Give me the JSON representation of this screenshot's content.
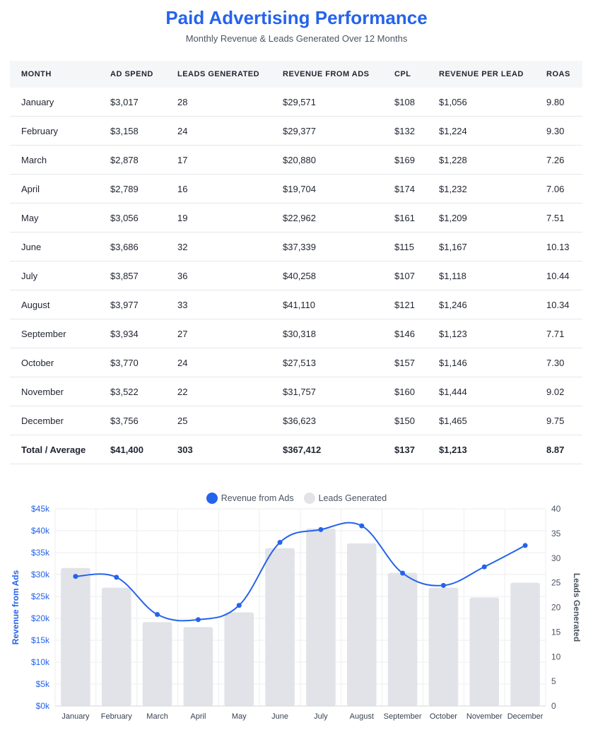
{
  "title": "Paid Advertising Performance",
  "subtitle": "Monthly Revenue & Leads Generated Over 12 Months",
  "table": {
    "headers": [
      "MONTH",
      "AD SPEND",
      "LEADS GENERATED",
      "REVENUE FROM ADS",
      "CPL",
      "REVENUE PER LEAD",
      "ROAS"
    ],
    "rows": [
      [
        "January",
        "$3,017",
        "28",
        "$29,571",
        "$108",
        "$1,056",
        "9.80"
      ],
      [
        "February",
        "$3,158",
        "24",
        "$29,377",
        "$132",
        "$1,224",
        "9.30"
      ],
      [
        "March",
        "$2,878",
        "17",
        "$20,880",
        "$169",
        "$1,228",
        "7.26"
      ],
      [
        "April",
        "$2,789",
        "16",
        "$19,704",
        "$174",
        "$1,232",
        "7.06"
      ],
      [
        "May",
        "$3,056",
        "19",
        "$22,962",
        "$161",
        "$1,209",
        "7.51"
      ],
      [
        "June",
        "$3,686",
        "32",
        "$37,339",
        "$115",
        "$1,167",
        "10.13"
      ],
      [
        "July",
        "$3,857",
        "36",
        "$40,258",
        "$107",
        "$1,118",
        "10.44"
      ],
      [
        "August",
        "$3,977",
        "33",
        "$41,110",
        "$121",
        "$1,246",
        "10.34"
      ],
      [
        "September",
        "$3,934",
        "27",
        "$30,318",
        "$146",
        "$1,123",
        "7.71"
      ],
      [
        "October",
        "$3,770",
        "24",
        "$27,513",
        "$157",
        "$1,146",
        "7.30"
      ],
      [
        "November",
        "$3,522",
        "22",
        "$31,757",
        "$160",
        "$1,444",
        "9.02"
      ],
      [
        "December",
        "$3,756",
        "25",
        "$36,623",
        "$150",
        "$1,465",
        "9.75"
      ]
    ],
    "total": [
      "Total / Average",
      "$41,400",
      "303",
      "$367,412",
      "$137",
      "$1,213",
      "8.87"
    ]
  },
  "colors": {
    "accent": "#2563eb",
    "bar": "#e2e3e8",
    "grid": "#eceef2"
  },
  "chart_data": {
    "type": "bar",
    "categories": [
      "January",
      "February",
      "March",
      "April",
      "May",
      "June",
      "July",
      "August",
      "September",
      "October",
      "November",
      "December"
    ],
    "series": [
      {
        "name": "Revenue from Ads",
        "type": "line",
        "axis": "left",
        "values": [
          29571,
          29377,
          20880,
          19704,
          22962,
          37339,
          40258,
          41110,
          30318,
          27513,
          31757,
          36623
        ]
      },
      {
        "name": "Leads Generated",
        "type": "bar",
        "axis": "right",
        "values": [
          28,
          24,
          17,
          16,
          19,
          32,
          36,
          33,
          27,
          24,
          22,
          25
        ]
      }
    ],
    "ylabel_left": "Revenue from Ads",
    "ylabel_right": "Leads Generated",
    "ylim_left": [
      0,
      45000
    ],
    "ylim_right": [
      0,
      40
    ],
    "yticks_left": [
      "$0k",
      "$5k",
      "$10k",
      "$15k",
      "$20k",
      "$25k",
      "$30k",
      "$35k",
      "$40k",
      "$45k"
    ],
    "yticks_right": [
      "0",
      "5",
      "10",
      "15",
      "20",
      "25",
      "30",
      "35",
      "40"
    ],
    "legend": "top-center",
    "grid": true
  }
}
